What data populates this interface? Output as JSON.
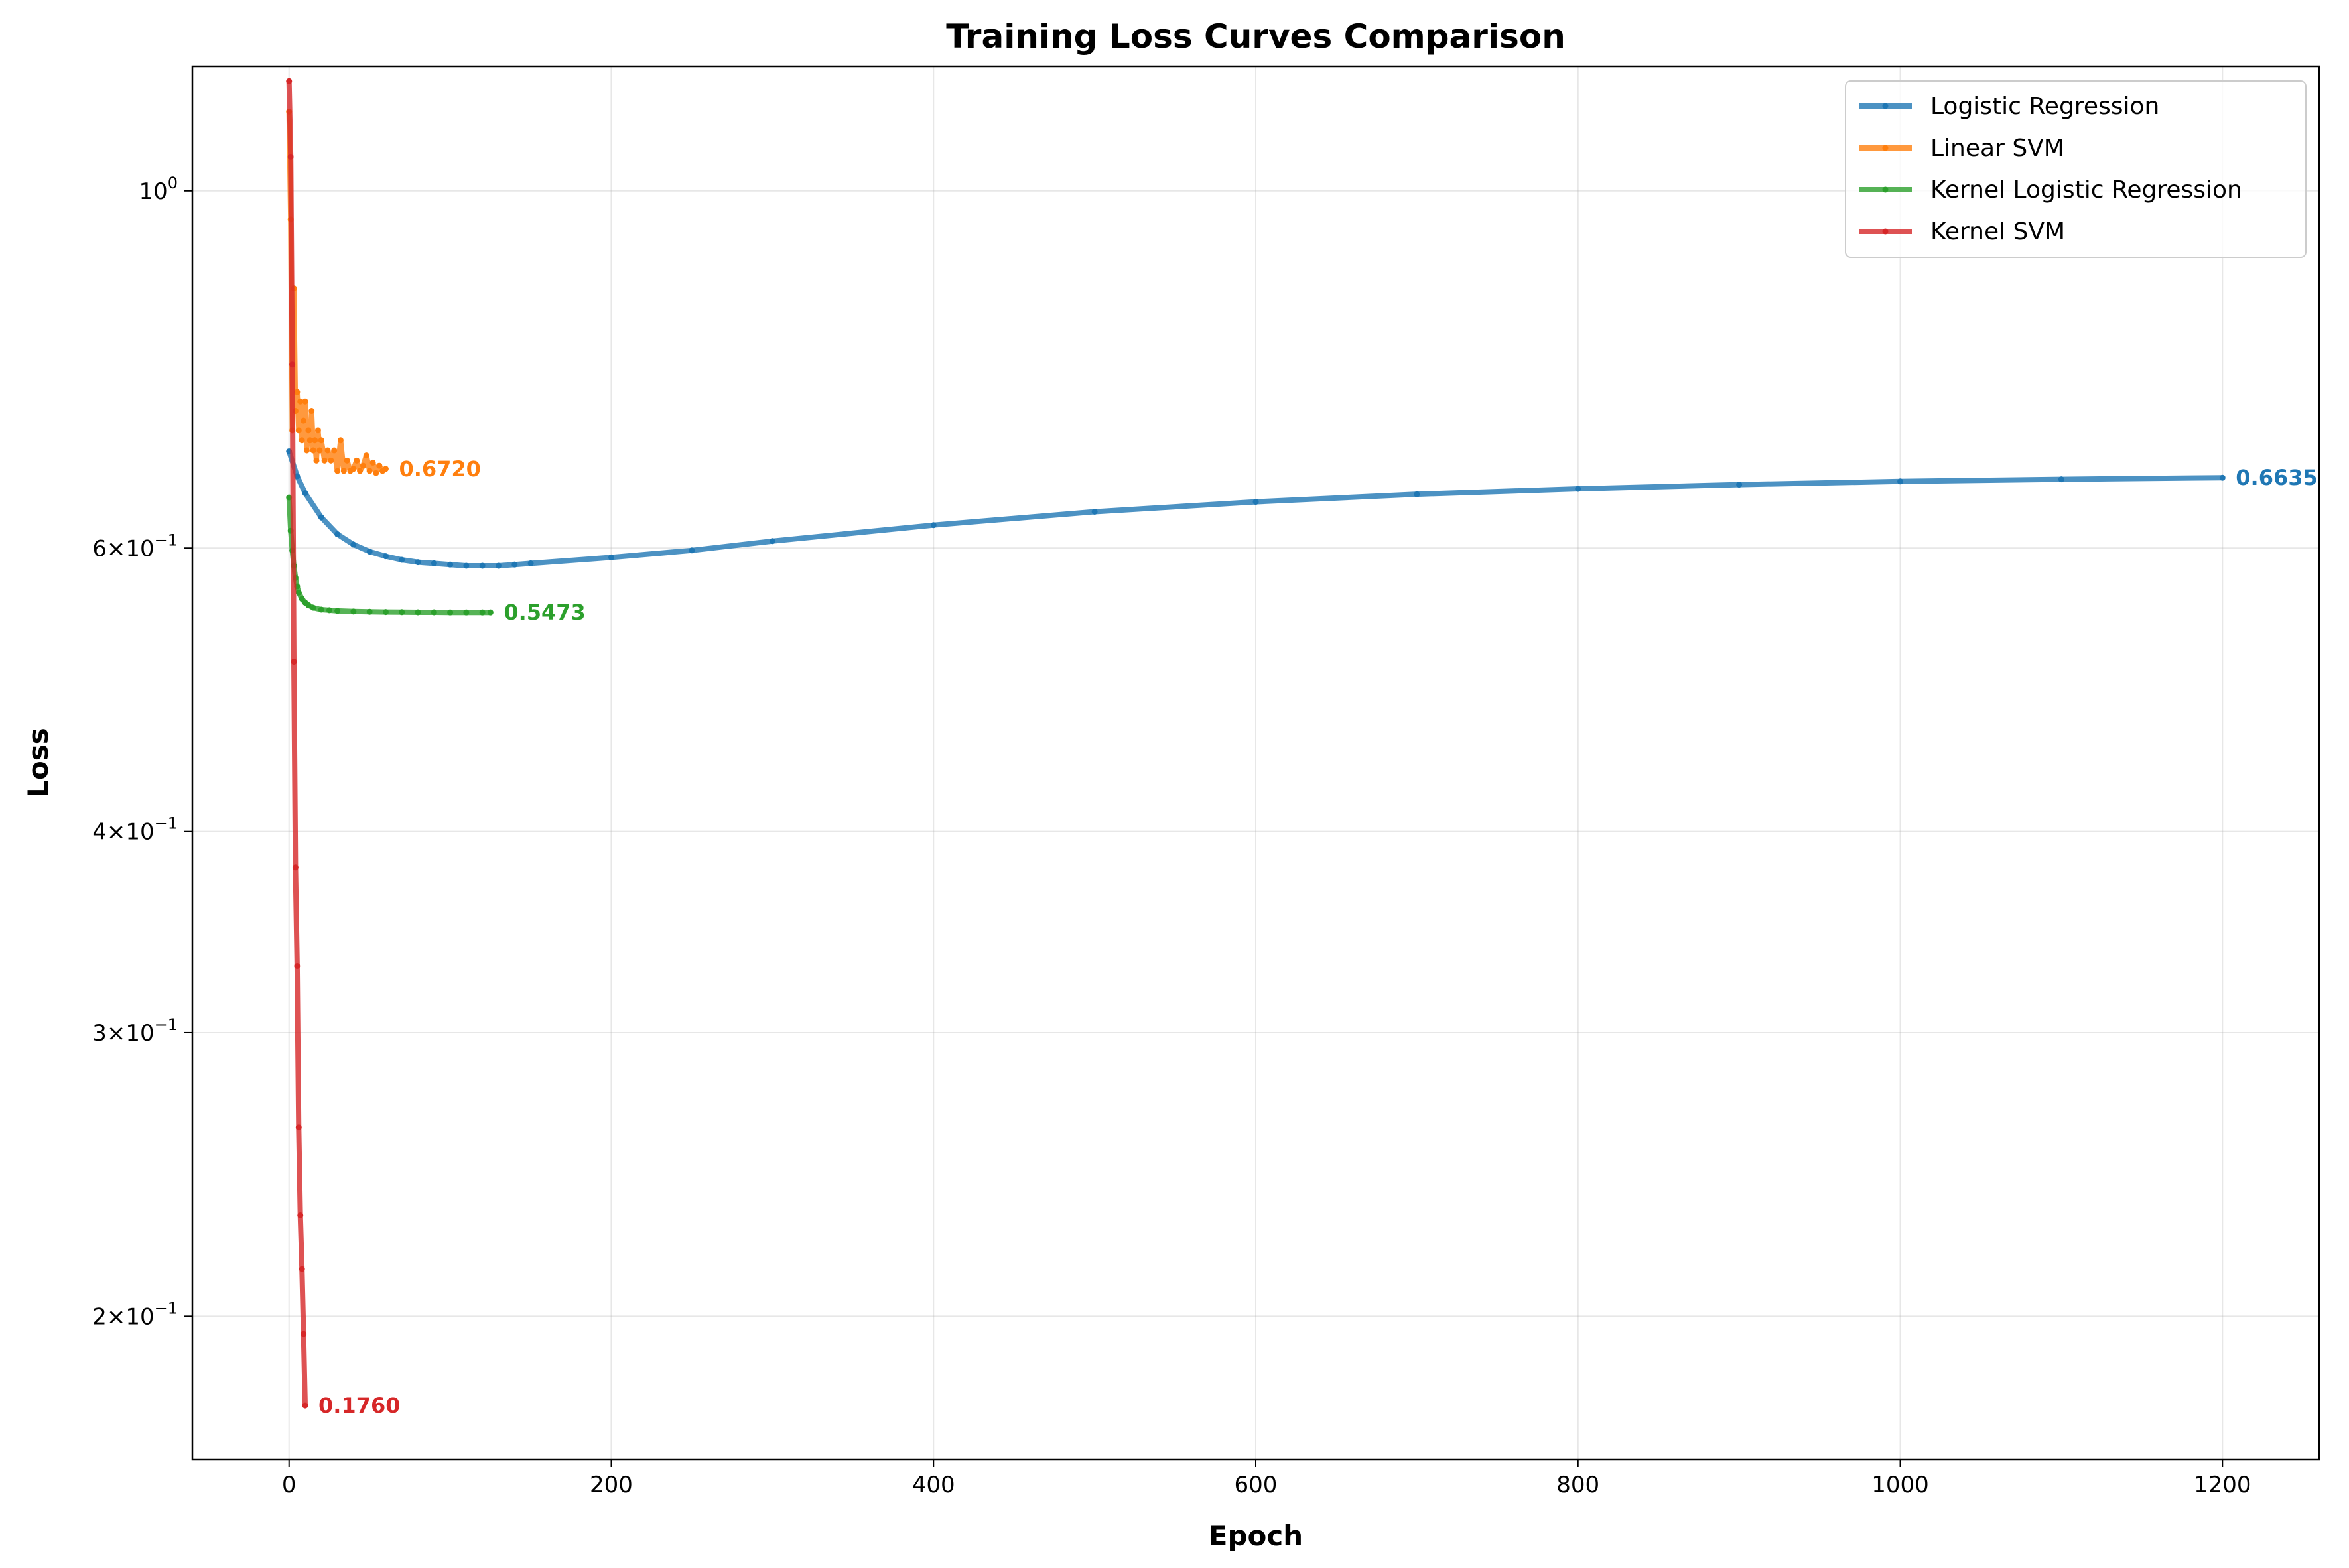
{
  "chart_data": {
    "type": "line",
    "title": "Training Loss Curves Comparison",
    "xlabel": "Epoch",
    "ylabel": "Loss",
    "xlim": [
      -60,
      1260
    ],
    "ylim": [
      0.163,
      1.195
    ],
    "y_scale": "log",
    "grid": true,
    "legend_position": "top-right",
    "x_ticks": [
      0,
      200,
      400,
      600,
      800,
      1000,
      1200
    ],
    "x_tick_labels": [
      "0",
      "200",
      "400",
      "600",
      "800",
      "1000",
      "1200"
    ],
    "y_ticks": [
      1.0,
      0.6,
      0.4,
      0.3,
      0.2
    ],
    "y_tick_labels": [
      {
        "base": "10",
        "exp": "0",
        "mant": ""
      },
      {
        "base": "10",
        "exp": "−1",
        "mant": "6"
      },
      {
        "base": "10",
        "exp": "−1",
        "mant": "4"
      },
      {
        "base": "10",
        "exp": "−1",
        "mant": "3"
      },
      {
        "base": "10",
        "exp": "−1",
        "mant": "2"
      }
    ],
    "series": [
      {
        "name": "Logistic Regression",
        "color": "#1f77b4",
        "final_label": "0.6635",
        "x": [
          0,
          5,
          10,
          20,
          30,
          40,
          50,
          60,
          70,
          80,
          90,
          100,
          110,
          120,
          130,
          140,
          150,
          200,
          250,
          300,
          400,
          500,
          600,
          700,
          800,
          900,
          1000,
          1100,
          1200
        ],
        "y": [
          0.689,
          0.665,
          0.649,
          0.627,
          0.612,
          0.603,
          0.597,
          0.593,
          0.59,
          0.588,
          0.587,
          0.586,
          0.585,
          0.585,
          0.585,
          0.586,
          0.587,
          0.592,
          0.598,
          0.606,
          0.62,
          0.632,
          0.641,
          0.648,
          0.653,
          0.657,
          0.66,
          0.662,
          0.6635
        ]
      },
      {
        "name": "Linear SVM",
        "color": "#ff7f0e",
        "final_label": "0.6720",
        "x": [
          0,
          1,
          2,
          3,
          4,
          5,
          6,
          7,
          8,
          9,
          10,
          11,
          12,
          13,
          14,
          15,
          16,
          17,
          18,
          19,
          20,
          22,
          24,
          26,
          28,
          30,
          32,
          34,
          36,
          38,
          40,
          42,
          44,
          46,
          48,
          50,
          52,
          54,
          56,
          58,
          60
        ],
        "y": [
          1.12,
          0.96,
          0.71,
          0.87,
          0.73,
          0.75,
          0.71,
          0.74,
          0.7,
          0.72,
          0.74,
          0.69,
          0.71,
          0.7,
          0.73,
          0.69,
          0.7,
          0.68,
          0.71,
          0.69,
          0.7,
          0.68,
          0.69,
          0.68,
          0.69,
          0.67,
          0.7,
          0.67,
          0.68,
          0.67,
          0.672,
          0.68,
          0.67,
          0.675,
          0.685,
          0.67,
          0.678,
          0.668,
          0.675,
          0.67,
          0.672
        ]
      },
      {
        "name": "Kernel Logistic Regression",
        "color": "#2ca02c",
        "final_label": "0.5473",
        "x": [
          0,
          1,
          2,
          3,
          4,
          5,
          6,
          8,
          10,
          12,
          15,
          20,
          25,
          30,
          40,
          50,
          60,
          70,
          80,
          90,
          100,
          110,
          120,
          125
        ],
        "y": [
          0.645,
          0.615,
          0.598,
          0.585,
          0.575,
          0.568,
          0.563,
          0.558,
          0.555,
          0.553,
          0.551,
          0.5495,
          0.549,
          0.5485,
          0.548,
          0.5478,
          0.5476,
          0.5475,
          0.5474,
          0.5474,
          0.5473,
          0.5473,
          0.5473,
          0.5473
        ]
      },
      {
        "name": "Kernel SVM",
        "color": "#d62728",
        "final_label": "0.1760",
        "x": [
          0,
          1,
          2,
          3,
          4,
          5,
          6,
          7,
          8,
          9,
          10
        ],
        "y": [
          1.17,
          1.05,
          0.78,
          0.51,
          0.38,
          0.33,
          0.262,
          0.231,
          0.214,
          0.195,
          0.176
        ]
      }
    ]
  }
}
